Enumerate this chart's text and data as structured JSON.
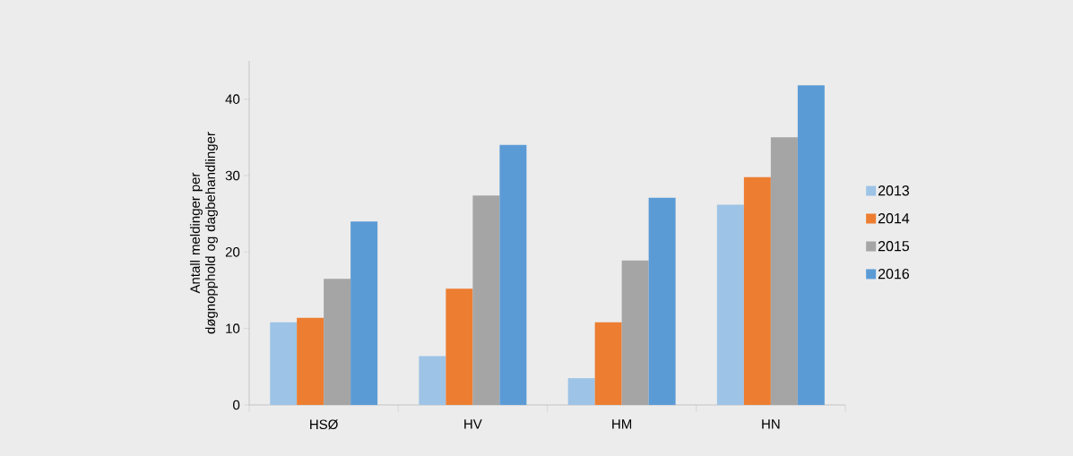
{
  "chart_data": {
    "type": "bar",
    "ylabel": "Antall meldinger per døgnopphold og dagbehandlinger",
    "categories": [
      "HSØ",
      "HV",
      "HM",
      "HN"
    ],
    "series": [
      {
        "name": "2013",
        "color": "#9dc3e6",
        "values": [
          10.8,
          6.4,
          3.5,
          26.2
        ]
      },
      {
        "name": "2014",
        "color": "#ed7d31",
        "values": [
          11.4,
          15.2,
          10.8,
          29.8
        ]
      },
      {
        "name": "2015",
        "color": "#a5a5a5",
        "values": [
          16.5,
          27.4,
          18.9,
          35.0
        ]
      },
      {
        "name": "2016",
        "color": "#5b9bd5",
        "values": [
          24.0,
          34.0,
          27.1,
          41.8
        ]
      }
    ],
    "ylim": [
      0,
      45
    ],
    "yticks": [
      0,
      10,
      20,
      30,
      40
    ],
    "legend": "right",
    "grid": false
  }
}
